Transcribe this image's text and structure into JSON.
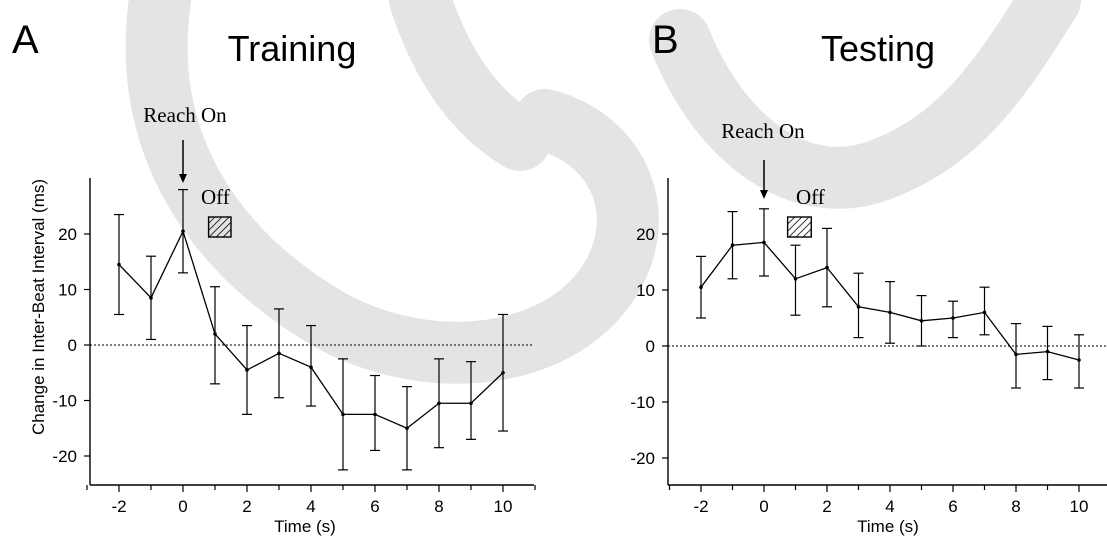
{
  "chart_data": [
    {
      "type": "line",
      "panel_label": "A",
      "title": "Training",
      "xlabel": "Time (s)",
      "ylabel": "Change in Inter-Beat Interval (ms)",
      "xlim": [
        -3,
        11
      ],
      "ylim": [
        -25,
        30
      ],
      "xticks": [
        -2,
        0,
        2,
        4,
        6,
        8,
        10
      ],
      "xtick_labels": [
        "-2",
        "0",
        "2",
        "4",
        "6",
        "8",
        "10"
      ],
      "yticks": [
        20,
        10,
        0,
        -10,
        -20
      ],
      "ytick_labels": [
        "20",
        "10",
        "0",
        "-10",
        "-20"
      ],
      "zero_reference_line": true,
      "grid": false,
      "series": [
        {
          "x": [
            -2,
            -1,
            0,
            1,
            2,
            3,
            4,
            5,
            6,
            7,
            8,
            9,
            10
          ],
          "values": [
            14.5,
            8.5,
            20.5,
            2,
            -4.5,
            -1.5,
            -4,
            -12.5,
            -12.5,
            -15,
            -10.5,
            -10.5,
            -5
          ],
          "err_lower": [
            5.5,
            1,
            13,
            -7,
            -12.5,
            -9.5,
            -11,
            -22.5,
            -19,
            -22.5,
            -18.5,
            -17,
            -15.5
          ],
          "err_upper": [
            23.5,
            16,
            28,
            10.5,
            3.5,
            6.5,
            3.5,
            -2.5,
            -5.5,
            -7.5,
            -2.5,
            -3,
            5.5
          ]
        }
      ],
      "annotations": {
        "reach_on_label": "Reach On",
        "reach_on_x": 0,
        "off_label": "Off",
        "off_box_x": [
          0.8,
          1.5
        ]
      }
    },
    {
      "type": "line",
      "panel_label": "B",
      "title": "Testing",
      "xlabel": "Time (s)",
      "ylabel": "",
      "xlim": [
        -3,
        11
      ],
      "ylim": [
        -25,
        30
      ],
      "xticks": [
        -2,
        0,
        2,
        4,
        6,
        8,
        10
      ],
      "xtick_labels": [
        "-2",
        "0",
        "2",
        "4",
        "6",
        "8",
        "10"
      ],
      "yticks": [
        20,
        10,
        0,
        -10,
        -20
      ],
      "ytick_labels": [
        "20",
        "10",
        "0",
        "-10",
        "-20"
      ],
      "zero_reference_line": true,
      "grid": false,
      "series": [
        {
          "x": [
            -2,
            -1,
            0,
            1,
            2,
            3,
            4,
            5,
            6,
            7,
            8,
            9,
            10
          ],
          "values": [
            10.5,
            18,
            18.5,
            12,
            14,
            7,
            6,
            4.5,
            5,
            6,
            -1.5,
            -1,
            -2.5
          ],
          "err_lower": [
            5,
            12,
            12.5,
            5.5,
            7,
            1.5,
            0.5,
            0,
            1.5,
            2,
            -7.5,
            -6,
            -7.5
          ],
          "err_upper": [
            16,
            24,
            24.5,
            18,
            21,
            13,
            11.5,
            9,
            8,
            10.5,
            4,
            3.5,
            2
          ]
        }
      ],
      "annotations": {
        "reach_on_label": "Reach On",
        "reach_on_x": 0,
        "off_label": "Off",
        "off_box_x": [
          0.75,
          1.5
        ]
      }
    }
  ]
}
